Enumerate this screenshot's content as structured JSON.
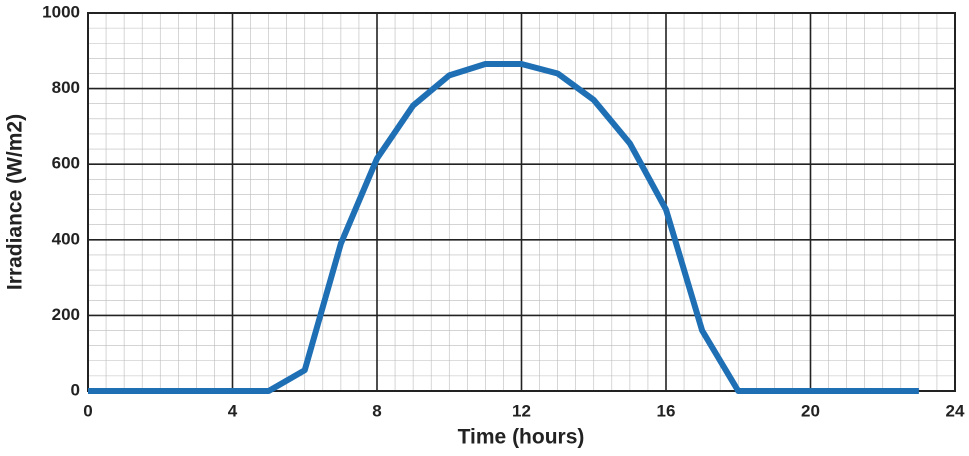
{
  "chart_data": {
    "type": "line",
    "x_label": "Time (hours)",
    "y_label": "Irradiance (W/m2)",
    "x": [
      0,
      1,
      2,
      3,
      4,
      5,
      6,
      7,
      8,
      9,
      10,
      11,
      12,
      13,
      14,
      15,
      16,
      17,
      18,
      19,
      20,
      21,
      22,
      23
    ],
    "series": [
      {
        "color": "#1f6fb5",
        "values": [
          0,
          0,
          0,
          0,
          0,
          0,
          55,
          390,
          615,
          755,
          835,
          865,
          865,
          840,
          770,
          655,
          480,
          160,
          0,
          0,
          0,
          0,
          0,
          0
        ]
      }
    ],
    "xlim": [
      0,
      24
    ],
    "xticks": [
      0,
      4,
      8,
      12,
      16,
      20,
      24
    ],
    "ylim": [
      0,
      1000
    ],
    "yticks": [
      0,
      200,
      400,
      600,
      800,
      1000
    ],
    "grid": true,
    "minor_grid": true
  }
}
